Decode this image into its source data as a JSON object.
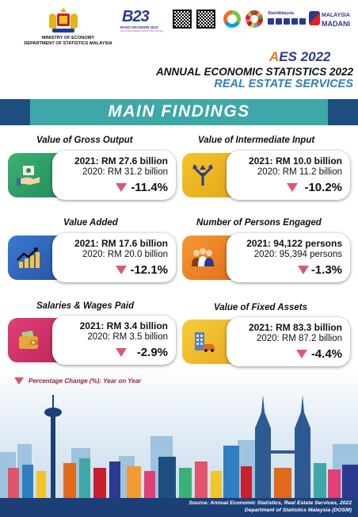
{
  "header": {
    "ministry_line1": "MINISTRY OF ECONOMY",
    "ministry_line2": "DEPARTMENT OF STATISTICS MALAYSIA",
    "banci_number": "B23",
    "banci_caption": "BANCI EKONOMI 2023",
    "banci_subcaption": "DATA PENGGERAK EKONOMI DIGITAL",
    "stats_malaysia": "StatsMalaysia",
    "madani_line1": "MALAYSIA",
    "madani_line2": "MADANI",
    "aes_logo_prefix": "A",
    "aes_logo_rest": "ES 2022",
    "title": "ANNUAL ECONOMIC STATISTICS 2022",
    "subtitle": "REAL ESTATE SERVICES"
  },
  "banner": {
    "text": "MAIN FINDINGS"
  },
  "findings": [
    {
      "title": "Value of Gross Output",
      "line2021": "2021: RM 27.6 billion",
      "line2020": "2020: RM 31.2 billion",
      "change": "-11.4%",
      "icon": "money-hand-icon",
      "color": "#3bb273"
    },
    {
      "title": "Value of Intermediate Input",
      "line2021": "2021: RM 10.0 billion",
      "line2020": "2020: RM 11.2 billion",
      "change": "-10.2%",
      "icon": "arrows-split-icon",
      "color": "#f4c52a"
    },
    {
      "title": "Value Added",
      "line2021": "2021: RM 17.6 billion",
      "line2020": "2020: RM 20.0 billion",
      "change": "-12.1%",
      "icon": "growth-chart-icon",
      "color": "#3a7bd5"
    },
    {
      "title": "Number of Persons Engaged",
      "line2021": "2021: 94,122 persons",
      "line2020": "2020: 95,394 persons",
      "change": "-1.3%",
      "icon": "people-group-icon",
      "color": "#f59a30"
    },
    {
      "title": "Salaries & Wages Paid",
      "line2021": "2021: RM 3.4 billion",
      "line2020": "2020: RM 3.5 billion",
      "change": "-2.9%",
      "icon": "wallet-icon",
      "color": "#e23f77"
    },
    {
      "title": "Value of Fixed Assets",
      "line2021": "2021: RM 83.3 billion",
      "line2020": "2020: RM 87.2 billion",
      "change": "-4.4%",
      "icon": "building-car-icon",
      "color": "#f6cd3a"
    }
  ],
  "legend": {
    "text": "Percentage Change (%): Year on Year"
  },
  "source": {
    "line1": "Source: Annual Economic Statistics, Real Estate Services, 2022",
    "line2": "Department of Statistics Malaysia (DOSM)"
  }
}
